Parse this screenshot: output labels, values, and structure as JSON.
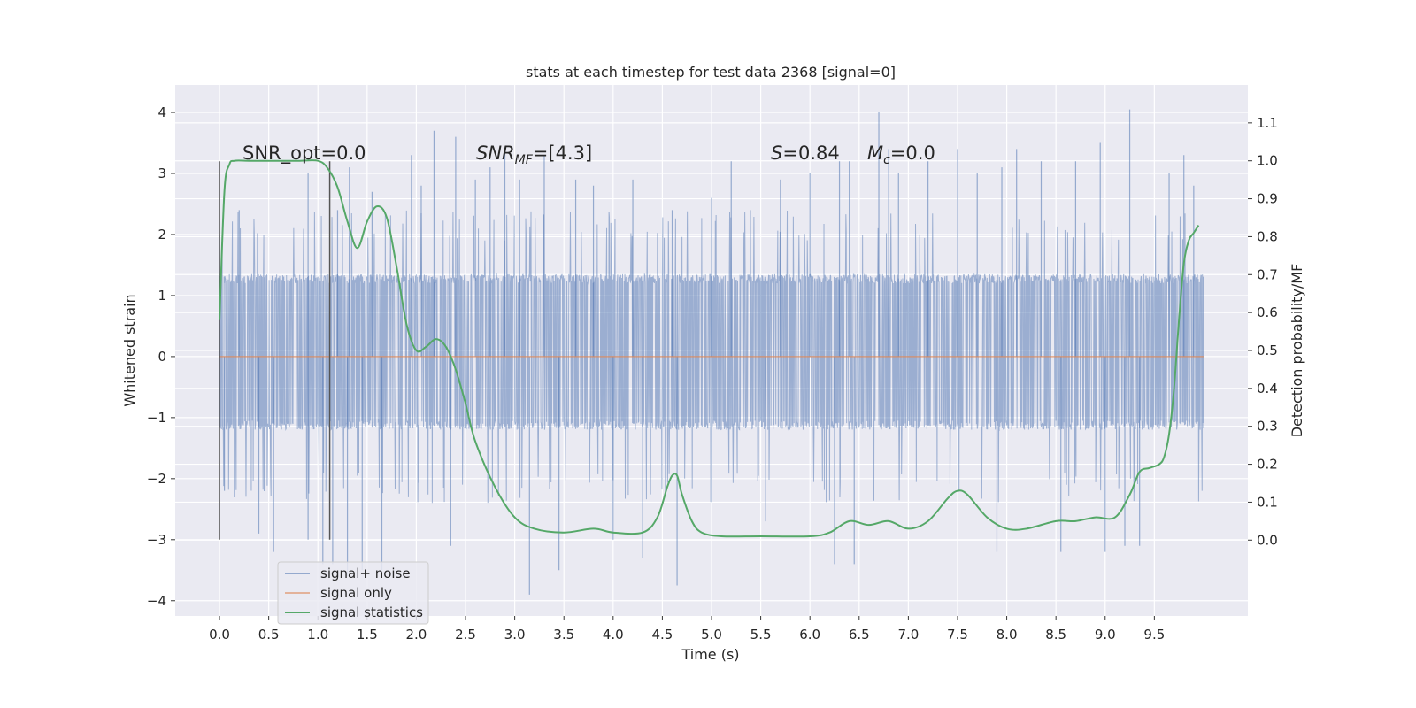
{
  "chart_data": {
    "type": "line",
    "title": "stats at each timestep for test data 2368 [signal=0]",
    "xlabel": "Time (s)",
    "ylabel": "Whitened strain",
    "ylabel_right": "Detection probability/MF",
    "xlim": [
      -0.45,
      10.45
    ],
    "ylim": [
      -4.25,
      4.45
    ],
    "ylim_right": [
      -0.2,
      1.2
    ],
    "x_ticks": [
      "0.0",
      "0.5",
      "1.0",
      "1.5",
      "2.0",
      "2.5",
      "3.0",
      "3.5",
      "4.0",
      "4.5",
      "5.0",
      "5.5",
      "6.0",
      "6.5",
      "7.0",
      "7.5",
      "8.0",
      "8.5",
      "9.0",
      "9.5"
    ],
    "y_ticks": [
      "4",
      "3",
      "2",
      "1",
      "0",
      "−1",
      "−2",
      "−3",
      "−4"
    ],
    "y_ticks_right": [
      "1.1",
      "1.0",
      "0.9",
      "0.8",
      "0.7",
      "0.6",
      "0.5",
      "0.4",
      "0.3",
      "0.2",
      "0.1",
      "0.0"
    ],
    "grid": true,
    "legend_position": "lower-left",
    "legend": [
      "signal+ noise",
      "signal only",
      "signal statistics"
    ],
    "annotations": {
      "snr_opt": "SNR_opt=0.0",
      "snr_mf_italic": "SNR",
      "snr_mf_sub": "MF",
      "snr_mf_value": "=[4.3]",
      "s_italic": "S",
      "s_value": "=0.84",
      "mc_italic": "M",
      "mc_sub": "c",
      "mc_value": "=0.0"
    },
    "vertical_lines": [
      {
        "x": 0.0,
        "y": [
          -3.0,
          3.2
        ]
      },
      {
        "x": 1.12,
        "y": [
          -3.0,
          3.2
        ]
      }
    ],
    "series": [
      {
        "name": "signal+ noise",
        "color": "#4c72b0",
        "t_range": [
          0.0,
          10.0
        ],
        "core_envelope": [
          -1.2,
          1.35
        ],
        "spike_peaks": [
          {
            "x": 0.0,
            "y": 2.0
          },
          {
            "x": 0.05,
            "y": -2.2
          },
          {
            "x": 0.2,
            "y": 2.4
          },
          {
            "x": 0.4,
            "y": -2.9
          },
          {
            "x": 0.55,
            "y": -3.2
          },
          {
            "x": 0.9,
            "y": 3.0
          },
          {
            "x": 0.9,
            "y": -3.0
          },
          {
            "x": 1.05,
            "y": -3.4
          },
          {
            "x": 1.15,
            "y": -3.4
          },
          {
            "x": 1.2,
            "y": 2.4
          },
          {
            "x": 1.32,
            "y": 3.1
          },
          {
            "x": 1.3,
            "y": -3.6
          },
          {
            "x": 1.45,
            "y": -3.5
          },
          {
            "x": 1.55,
            "y": 2.7
          },
          {
            "x": 1.65,
            "y": -3.5
          },
          {
            "x": 1.95,
            "y": 3.3
          },
          {
            "x": 2.05,
            "y": 2.8
          },
          {
            "x": 2.18,
            "y": 3.7
          },
          {
            "x": 2.4,
            "y": 3.6
          },
          {
            "x": 2.35,
            "y": -3.1
          },
          {
            "x": 2.6,
            "y": 2.9
          },
          {
            "x": 2.75,
            "y": 3.1
          },
          {
            "x": 2.9,
            "y": 3.4
          },
          {
            "x": 3.05,
            "y": 2.9
          },
          {
            "x": 3.15,
            "y": -3.9
          },
          {
            "x": 3.3,
            "y": 3.3
          },
          {
            "x": 3.45,
            "y": -3.5
          },
          {
            "x": 3.62,
            "y": 2.9
          },
          {
            "x": 3.8,
            "y": 2.8
          },
          {
            "x": 4.0,
            "y": -3.0
          },
          {
            "x": 4.2,
            "y": 2.9
          },
          {
            "x": 4.3,
            "y": -3.3
          },
          {
            "x": 4.6,
            "y": 2.4
          },
          {
            "x": 4.65,
            "y": -3.75
          },
          {
            "x": 5.0,
            "y": 2.6
          },
          {
            "x": 5.2,
            "y": 3.2
          },
          {
            "x": 5.55,
            "y": -2.7
          },
          {
            "x": 5.7,
            "y": 2.9
          },
          {
            "x": 6.0,
            "y": 3.0
          },
          {
            "x": 6.3,
            "y": 3.2
          },
          {
            "x": 6.25,
            "y": -3.4
          },
          {
            "x": 6.4,
            "y": 3.2
          },
          {
            "x": 6.45,
            "y": -3.4
          },
          {
            "x": 6.7,
            "y": 4.0
          },
          {
            "x": 6.8,
            "y": 3.4
          },
          {
            "x": 6.9,
            "y": 3.0
          },
          {
            "x": 7.2,
            "y": 3.2
          },
          {
            "x": 7.5,
            "y": 3.4
          },
          {
            "x": 7.7,
            "y": 3.0
          },
          {
            "x": 7.95,
            "y": 3.1
          },
          {
            "x": 7.9,
            "y": -3.2
          },
          {
            "x": 8.1,
            "y": 3.4
          },
          {
            "x": 8.35,
            "y": 3.2
          },
          {
            "x": 8.55,
            "y": -3.2
          },
          {
            "x": 8.7,
            "y": 3.2
          },
          {
            "x": 8.95,
            "y": 3.5
          },
          {
            "x": 9.0,
            "y": -3.2
          },
          {
            "x": 9.2,
            "y": -3.1
          },
          {
            "x": 9.25,
            "y": 4.05
          },
          {
            "x": 9.35,
            "y": -3.1
          },
          {
            "x": 9.65,
            "y": 3.0
          },
          {
            "x": 9.8,
            "y": 3.3
          },
          {
            "x": 9.9,
            "y": 2.8
          }
        ]
      },
      {
        "name": "signal only",
        "color": "#dd8452",
        "x": [
          0.0,
          10.0
        ],
        "y": [
          0.0,
          0.0
        ]
      },
      {
        "name": "signal statistics",
        "color": "#55a868",
        "axis": "right",
        "x": [
          0.0,
          0.05,
          0.1,
          0.15,
          0.3,
          0.5,
          0.8,
          1.0,
          1.1,
          1.2,
          1.3,
          1.4,
          1.5,
          1.6,
          1.7,
          1.8,
          1.9,
          2.0,
          2.1,
          2.2,
          2.3,
          2.4,
          2.5,
          2.6,
          2.8,
          3.0,
          3.2,
          3.5,
          3.8,
          4.0,
          4.3,
          4.45,
          4.55,
          4.6,
          4.65,
          4.7,
          4.8,
          4.9,
          5.1,
          5.5,
          6.0,
          6.2,
          6.4,
          6.6,
          6.8,
          7.0,
          7.2,
          7.4,
          7.5,
          7.6,
          7.8,
          8.0,
          8.2,
          8.5,
          8.7,
          8.9,
          9.1,
          9.25,
          9.35,
          9.45,
          9.55,
          9.6,
          9.65,
          9.7,
          9.75,
          9.8,
          9.85,
          9.9,
          9.95
        ],
        "y": [
          0.58,
          0.92,
          0.99,
          1.0,
          1.0,
          1.0,
          1.0,
          1.0,
          0.98,
          0.93,
          0.84,
          0.77,
          0.84,
          0.88,
          0.85,
          0.72,
          0.57,
          0.5,
          0.51,
          0.53,
          0.51,
          0.45,
          0.36,
          0.26,
          0.14,
          0.06,
          0.03,
          0.02,
          0.03,
          0.02,
          0.02,
          0.06,
          0.14,
          0.17,
          0.17,
          0.12,
          0.05,
          0.02,
          0.01,
          0.01,
          0.01,
          0.02,
          0.05,
          0.04,
          0.05,
          0.03,
          0.05,
          0.11,
          0.13,
          0.12,
          0.06,
          0.03,
          0.03,
          0.05,
          0.05,
          0.06,
          0.06,
          0.12,
          0.18,
          0.19,
          0.2,
          0.22,
          0.28,
          0.4,
          0.58,
          0.73,
          0.79,
          0.81,
          0.83
        ]
      }
    ]
  }
}
